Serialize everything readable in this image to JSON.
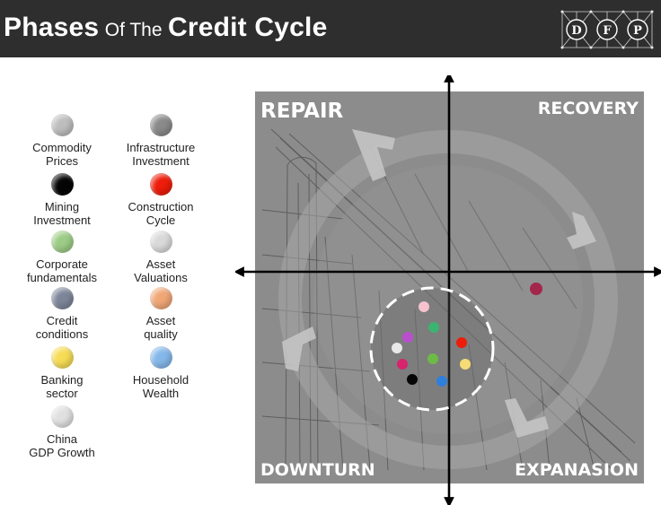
{
  "header": {
    "title_part1": "Phases",
    "title_part2": "Of The",
    "title_part3": "Credit Cycle",
    "logo_letters": [
      "D",
      "F",
      "P"
    ],
    "background_color": "#2e2e2e"
  },
  "legend": [
    {
      "label": "Commodity\nPrices",
      "color": "#bdbdbd"
    },
    {
      "label": "Infrastructure\nInvestment",
      "color": "#8a8a8a"
    },
    {
      "label": "Mining\nInvestment",
      "color": "#050505"
    },
    {
      "label": "Construction\nCycle",
      "color": "#ee1c0a"
    },
    {
      "label": "Corporate\nfundamentals",
      "color": "#9ccc86"
    },
    {
      "label": "Asset\nValuations",
      "color": "#d9d9d9"
    },
    {
      "label": "Credit\nconditions",
      "color": "#7d8699"
    },
    {
      "label": "Asset\nquality",
      "color": "#f1a676"
    },
    {
      "label": "Banking\nsector",
      "color": "#f6dc55"
    },
    {
      "label": "Household\nWealth",
      "color": "#85b8ea"
    },
    {
      "label": "China\nGDP Growth",
      "color": "#e0e0e0"
    }
  ],
  "chart": {
    "quadrants": {
      "top_left": "REPAIR",
      "top_right": "RECOVERY",
      "bottom_left": "DOWNTURN",
      "bottom_right": "EXPANASION"
    },
    "background_color": "#8c8c8c",
    "points": [
      {
        "color": "#f6c2cf"
      },
      {
        "color": "#3cb371"
      },
      {
        "color": "#b94fcf"
      },
      {
        "color": "#ee1c0a"
      },
      {
        "color": "#e8e8e8"
      },
      {
        "color": "#6dbb46"
      },
      {
        "color": "#d6246e"
      },
      {
        "color": "#f6dc75"
      },
      {
        "color": "#050505"
      },
      {
        "color": "#2f7fdc"
      },
      {
        "color": "#a3274d"
      }
    ]
  }
}
